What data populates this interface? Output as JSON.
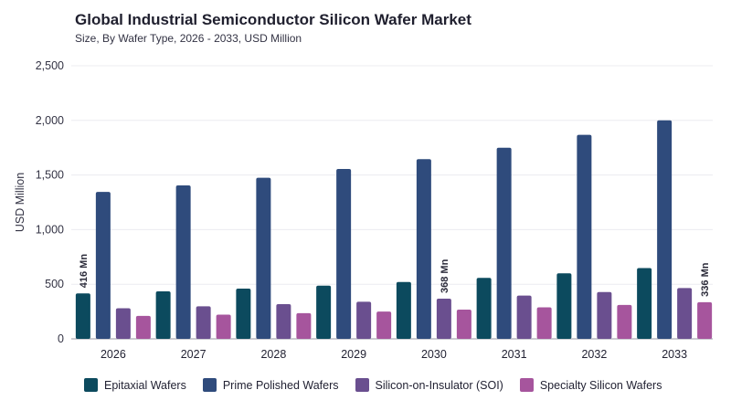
{
  "title": "Global Industrial Semiconductor Silicon Wafer Market",
  "subtitle": "Size, By Wafer Type, 2026 - 2033, USD Million",
  "chart_data": {
    "type": "bar",
    "title": "Global Industrial Semiconductor Silicon Wafer Market",
    "subtitle": "Size, By Wafer Type, 2026 - 2033, USD Million",
    "xlabel": "",
    "ylabel": "USD Million",
    "ylim": [
      0,
      2500
    ],
    "yticks": [
      0,
      500,
      1000,
      1500,
      2000,
      2500
    ],
    "ytick_labels": [
      "0",
      "500",
      "1,000",
      "1,500",
      "2,000",
      "2,500"
    ],
    "grid": true,
    "legend_position": "bottom",
    "categories": [
      "2026",
      "2027",
      "2028",
      "2029",
      "2030",
      "2031",
      "2032",
      "2033"
    ],
    "series": [
      {
        "name": "Epitaxial Wafers",
        "color": "#0c4a5e",
        "values": [
          416,
          435,
          460,
          487,
          520,
          558,
          600,
          648
        ]
      },
      {
        "name": "Prime Polished Wafers",
        "color": "#2f4b7c",
        "values": [
          1345,
          1405,
          1475,
          1555,
          1645,
          1750,
          1868,
          2000
        ]
      },
      {
        "name": "Silicon-on-Insulator (SOI)",
        "color": "#6a4f8f",
        "values": [
          280,
          298,
          318,
          340,
          368,
          396,
          428,
          465
        ]
      },
      {
        "name": "Specialty Silicon Wafers",
        "color": "#a6559d",
        "values": [
          210,
          222,
          235,
          250,
          268,
          288,
          310,
          336
        ]
      }
    ],
    "annotations": [
      {
        "series": 0,
        "category": 0,
        "text": "416 Mn"
      },
      {
        "series": 2,
        "category": 4,
        "text": "368 Mn"
      },
      {
        "series": 3,
        "category": 7,
        "text": "336 Mn"
      }
    ]
  }
}
